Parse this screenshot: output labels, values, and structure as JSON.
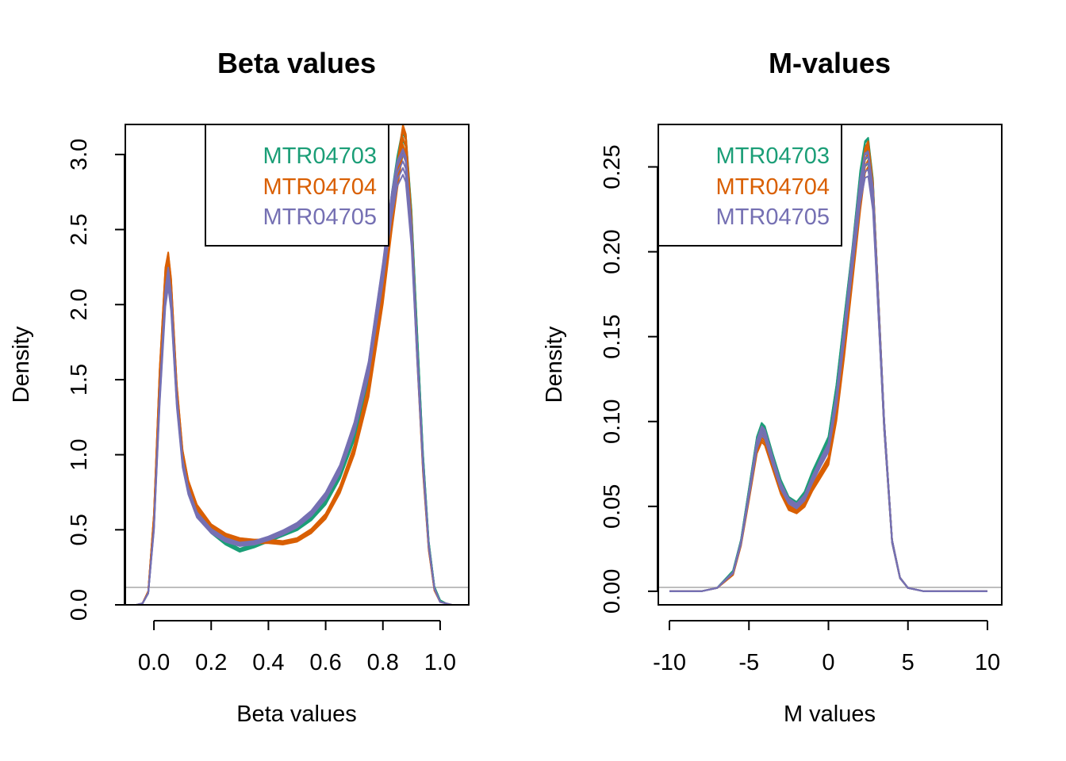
{
  "chart_data": [
    {
      "type": "line",
      "title": "Beta values",
      "xlabel": "Beta values",
      "ylabel": "Density",
      "xlim": [
        -0.1,
        1.1
      ],
      "ylim": [
        0,
        3.2
      ],
      "x_ticks": [
        "0.0",
        "0.2",
        "0.4",
        "0.6",
        "0.8",
        "1.0"
      ],
      "y_ticks": [
        "0.0",
        "0.5",
        "1.0",
        "1.5",
        "2.0",
        "2.5",
        "3.0"
      ],
      "legend": {
        "position": "top",
        "entries": [
          "MTR04703",
          "MTR04704",
          "MTR04705"
        ]
      },
      "series": [
        {
          "name": "MTR04703",
          "color": "#1B9E77",
          "x": [
            -0.06,
            -0.04,
            -0.02,
            0.0,
            0.02,
            0.04,
            0.05,
            0.06,
            0.08,
            0.1,
            0.12,
            0.15,
            0.2,
            0.25,
            0.3,
            0.35,
            0.4,
            0.45,
            0.5,
            0.55,
            0.6,
            0.65,
            0.7,
            0.75,
            0.8,
            0.83,
            0.85,
            0.87,
            0.88,
            0.9,
            0.92,
            0.94,
            0.96,
            0.98,
            1.0,
            1.02,
            1.04,
            1.06
          ],
          "y": [
            0.0,
            0.01,
            0.08,
            0.55,
            1.45,
            2.12,
            2.25,
            2.08,
            1.4,
            0.98,
            0.78,
            0.62,
            0.5,
            0.42,
            0.37,
            0.4,
            0.44,
            0.48,
            0.52,
            0.59,
            0.7,
            0.88,
            1.15,
            1.55,
            2.2,
            2.7,
            2.95,
            3.14,
            3.1,
            2.6,
            1.8,
            1.0,
            0.42,
            0.12,
            0.03,
            0.01,
            0.0,
            0.0
          ]
        },
        {
          "name": "MTR04704",
          "color": "#D95F02",
          "x": [
            -0.06,
            -0.04,
            -0.02,
            0.0,
            0.02,
            0.04,
            0.05,
            0.06,
            0.08,
            0.1,
            0.12,
            0.15,
            0.2,
            0.25,
            0.3,
            0.35,
            0.4,
            0.45,
            0.5,
            0.55,
            0.6,
            0.65,
            0.7,
            0.75,
            0.8,
            0.83,
            0.85,
            0.87,
            0.88,
            0.9,
            0.92,
            0.94,
            0.96,
            0.98,
            1.0,
            1.02,
            1.04,
            1.06
          ],
          "y": [
            0.0,
            0.01,
            0.09,
            0.6,
            1.55,
            2.22,
            2.32,
            2.15,
            1.45,
            1.02,
            0.82,
            0.66,
            0.53,
            0.47,
            0.44,
            0.43,
            0.43,
            0.42,
            0.44,
            0.5,
            0.6,
            0.78,
            1.05,
            1.45,
            2.1,
            2.6,
            2.9,
            3.16,
            3.1,
            2.55,
            1.7,
            0.92,
            0.38,
            0.1,
            0.02,
            0.01,
            0.0,
            0.0
          ]
        },
        {
          "name": "MTR04705",
          "color": "#7570B3",
          "x": [
            -0.06,
            -0.04,
            -0.02,
            0.0,
            0.02,
            0.04,
            0.05,
            0.06,
            0.08,
            0.1,
            0.12,
            0.15,
            0.2,
            0.25,
            0.3,
            0.35,
            0.4,
            0.45,
            0.5,
            0.55,
            0.6,
            0.65,
            0.7,
            0.75,
            0.8,
            0.83,
            0.85,
            0.87,
            0.88,
            0.9,
            0.92,
            0.94,
            0.96,
            0.98,
            1.0,
            1.02,
            1.04,
            1.06
          ],
          "y": [
            0.0,
            0.01,
            0.08,
            0.52,
            1.4,
            2.08,
            2.22,
            2.05,
            1.38,
            0.96,
            0.77,
            0.61,
            0.5,
            0.44,
            0.41,
            0.42,
            0.45,
            0.49,
            0.54,
            0.62,
            0.74,
            0.92,
            1.2,
            1.6,
            2.25,
            2.7,
            2.92,
            3.0,
            2.95,
            2.5,
            1.7,
            0.95,
            0.4,
            0.11,
            0.02,
            0.01,
            0.0,
            0.0
          ]
        }
      ]
    },
    {
      "type": "line",
      "title": "M-values",
      "xlabel": "M values",
      "ylabel": "Density",
      "xlim": [
        -10.7,
        10.9
      ],
      "ylim": [
        -0.008,
        0.275
      ],
      "x_ticks": [
        "-10",
        "-5",
        "0",
        "5",
        "10"
      ],
      "y_ticks": [
        "0.00",
        "0.05",
        "0.10",
        "0.15",
        "0.20",
        "0.25"
      ],
      "legend": {
        "position": "top-left",
        "entries": [
          "MTR04703",
          "MTR04704",
          "MTR04705"
        ]
      },
      "series": [
        {
          "name": "MTR04703",
          "color": "#1B9E77",
          "x": [
            -10.0,
            -8.0,
            -7.0,
            -6.0,
            -5.5,
            -5.0,
            -4.5,
            -4.2,
            -4.0,
            -3.5,
            -3.0,
            -2.5,
            -2.0,
            -1.5,
            -1.0,
            -0.5,
            0.0,
            0.5,
            1.0,
            1.5,
            2.0,
            2.3,
            2.5,
            2.8,
            3.0,
            3.5,
            4.0,
            4.5,
            5.0,
            6.0,
            7.0,
            8.0,
            10.0
          ],
          "y": [
            0.0,
            0.0,
            0.002,
            0.012,
            0.03,
            0.06,
            0.09,
            0.098,
            0.096,
            0.08,
            0.065,
            0.055,
            0.052,
            0.058,
            0.07,
            0.08,
            0.09,
            0.12,
            0.16,
            0.2,
            0.245,
            0.262,
            0.264,
            0.24,
            0.2,
            0.1,
            0.03,
            0.008,
            0.002,
            0.0,
            0.0,
            0.0,
            0.0
          ]
        },
        {
          "name": "MTR04704",
          "color": "#D95F02",
          "x": [
            -10.0,
            -8.0,
            -7.0,
            -6.0,
            -5.5,
            -5.0,
            -4.5,
            -4.2,
            -4.0,
            -3.5,
            -3.0,
            -2.5,
            -2.0,
            -1.5,
            -1.0,
            -0.5,
            0.0,
            0.5,
            1.0,
            1.5,
            2.0,
            2.3,
            2.5,
            2.8,
            3.0,
            3.5,
            4.0,
            4.5,
            5.0,
            6.0,
            7.0,
            8.0,
            10.0
          ],
          "y": [
            0.0,
            0.0,
            0.002,
            0.01,
            0.028,
            0.056,
            0.085,
            0.092,
            0.09,
            0.075,
            0.06,
            0.05,
            0.048,
            0.052,
            0.062,
            0.07,
            0.078,
            0.105,
            0.145,
            0.19,
            0.235,
            0.258,
            0.262,
            0.238,
            0.2,
            0.1,
            0.03,
            0.008,
            0.002,
            0.0,
            0.0,
            0.0,
            0.0
          ]
        },
        {
          "name": "MTR04705",
          "color": "#7570B3",
          "x": [
            -10.0,
            -8.0,
            -7.0,
            -6.0,
            -5.5,
            -5.0,
            -4.5,
            -4.2,
            -4.0,
            -3.5,
            -3.0,
            -2.5,
            -2.0,
            -1.5,
            -1.0,
            -0.5,
            0.0,
            0.5,
            1.0,
            1.5,
            2.0,
            2.3,
            2.5,
            2.8,
            3.0,
            3.5,
            4.0,
            4.5,
            5.0,
            6.0,
            7.0,
            8.0,
            10.0
          ],
          "y": [
            0.0,
            0.0,
            0.002,
            0.011,
            0.029,
            0.058,
            0.088,
            0.096,
            0.094,
            0.078,
            0.063,
            0.054,
            0.051,
            0.056,
            0.067,
            0.077,
            0.086,
            0.115,
            0.155,
            0.198,
            0.24,
            0.255,
            0.256,
            0.235,
            0.198,
            0.1,
            0.03,
            0.008,
            0.002,
            0.0,
            0.0,
            0.0,
            0.0
          ]
        }
      ]
    }
  ]
}
